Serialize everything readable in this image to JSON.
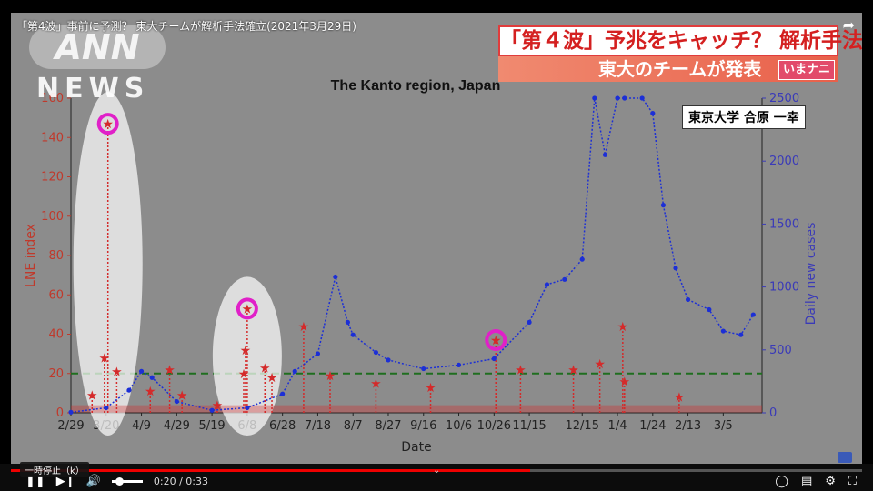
{
  "video": {
    "title": "「第4波」事前に予測？ 東大チームが解析手法確立(2021年3月29日)",
    "logo_ann": "ANN",
    "logo_news": "NEWS"
  },
  "caption": {
    "main": "「第４波」予兆をキャッチ？ 解析手法確立",
    "sub": "東大のチームが発表",
    "badge": "いまナニ"
  },
  "speaker": "東京大学 合原 一幸",
  "controls": {
    "time": "0:20 / 0:33",
    "pause_tooltip": "一時停止（k）",
    "progress": 0.61,
    "icons": [
      "pause-icon",
      "next-icon",
      "volume-icon",
      "autoplay-toggle",
      "subtitles-icon",
      "settings-icon",
      "fullscreen-icon"
    ]
  },
  "colors": {
    "lne": "#d42a2a",
    "cases": "#1c2fd6",
    "threshold": "#1f6e1f",
    "highlight": "#e020c8",
    "left_axis": "#c0392b",
    "right_axis": "#3a3ab8"
  },
  "chart_data": {
    "type": "line",
    "title": "The Kanto region, Japan",
    "xlabel": "Date",
    "ylabel_left": "LNE index",
    "ylabel_right": "Daily new cases",
    "x_ticks": [
      "2/29",
      "3/20",
      "4/9",
      "4/29",
      "5/19",
      "6/8",
      "6/28",
      "7/18",
      "8/7",
      "8/27",
      "9/16",
      "10/6",
      "10/26",
      "11/15",
      "12/15",
      "1/4",
      "1/24",
      "2/13",
      "3/5"
    ],
    "y_left_ticks": [
      "0",
      "20",
      "40",
      "60",
      "80",
      "100",
      "120",
      "140",
      "160"
    ],
    "y_right_ticks": [
      "0",
      "500",
      "1000",
      "1500",
      "2000",
      "2500"
    ],
    "ylim_left": [
      0,
      160
    ],
    "ylim_right": [
      0,
      2500
    ],
    "threshold_lne": 20,
    "grid": false,
    "series": [
      {
        "name": "LNE index",
        "axis": "left",
        "points": [
          {
            "x": "3/12",
            "y": 9
          },
          {
            "x": "3/19",
            "y": 28
          },
          {
            "x": "3/21",
            "y": 147
          },
          {
            "x": "3/26",
            "y": 21
          },
          {
            "x": "4/14",
            "y": 11
          },
          {
            "x": "4/25",
            "y": 22
          },
          {
            "x": "5/2",
            "y": 9
          },
          {
            "x": "5/22",
            "y": 4
          },
          {
            "x": "6/6",
            "y": 20
          },
          {
            "x": "6/7",
            "y": 32
          },
          {
            "x": "6/8",
            "y": 53
          },
          {
            "x": "6/18",
            "y": 23
          },
          {
            "x": "6/22",
            "y": 18
          },
          {
            "x": "7/10",
            "y": 44
          },
          {
            "x": "7/25",
            "y": 19
          },
          {
            "x": "8/20",
            "y": 15
          },
          {
            "x": "9/20",
            "y": 13
          },
          {
            "x": "10/27",
            "y": 37
          },
          {
            "x": "11/10",
            "y": 22
          },
          {
            "x": "12/10",
            "y": 22
          },
          {
            "x": "12/25",
            "y": 25
          },
          {
            "x": "1/7",
            "y": 44
          },
          {
            "x": "1/8",
            "y": 16
          },
          {
            "x": "2/8",
            "y": 8
          }
        ]
      },
      {
        "name": "Daily new cases",
        "axis": "right",
        "points": [
          {
            "x": "2/29",
            "y": 5
          },
          {
            "x": "3/20",
            "y": 40
          },
          {
            "x": "4/2",
            "y": 180
          },
          {
            "x": "4/9",
            "y": 330
          },
          {
            "x": "4/15",
            "y": 280
          },
          {
            "x": "4/29",
            "y": 90
          },
          {
            "x": "5/19",
            "y": 20
          },
          {
            "x": "6/8",
            "y": 40
          },
          {
            "x": "6/28",
            "y": 150
          },
          {
            "x": "7/5",
            "y": 330
          },
          {
            "x": "7/18",
            "y": 470
          },
          {
            "x": "7/28",
            "y": 1080
          },
          {
            "x": "8/4",
            "y": 720
          },
          {
            "x": "8/7",
            "y": 620
          },
          {
            "x": "8/20",
            "y": 480
          },
          {
            "x": "8/27",
            "y": 420
          },
          {
            "x": "9/16",
            "y": 350
          },
          {
            "x": "10/6",
            "y": 380
          },
          {
            "x": "10/26",
            "y": 430
          },
          {
            "x": "11/15",
            "y": 720
          },
          {
            "x": "11/25",
            "y": 1020
          },
          {
            "x": "12/5",
            "y": 1060
          },
          {
            "x": "12/15",
            "y": 1220
          },
          {
            "x": "12/22",
            "y": 2500
          },
          {
            "x": "12/28",
            "y": 2050
          },
          {
            "x": "1/4",
            "y": 2500
          },
          {
            "x": "1/8",
            "y": 2500
          },
          {
            "x": "1/18",
            "y": 2500
          },
          {
            "x": "1/24",
            "y": 2380
          },
          {
            "x": "1/30",
            "y": 1650
          },
          {
            "x": "2/6",
            "y": 1150
          },
          {
            "x": "2/13",
            "y": 900
          },
          {
            "x": "2/25",
            "y": 820
          },
          {
            "x": "3/5",
            "y": 650
          },
          {
            "x": "3/15",
            "y": 620
          },
          {
            "x": "3/22",
            "y": 780
          }
        ]
      }
    ],
    "highlighted_peaks": [
      "3/21",
      "6/8",
      "10/27"
    ]
  }
}
